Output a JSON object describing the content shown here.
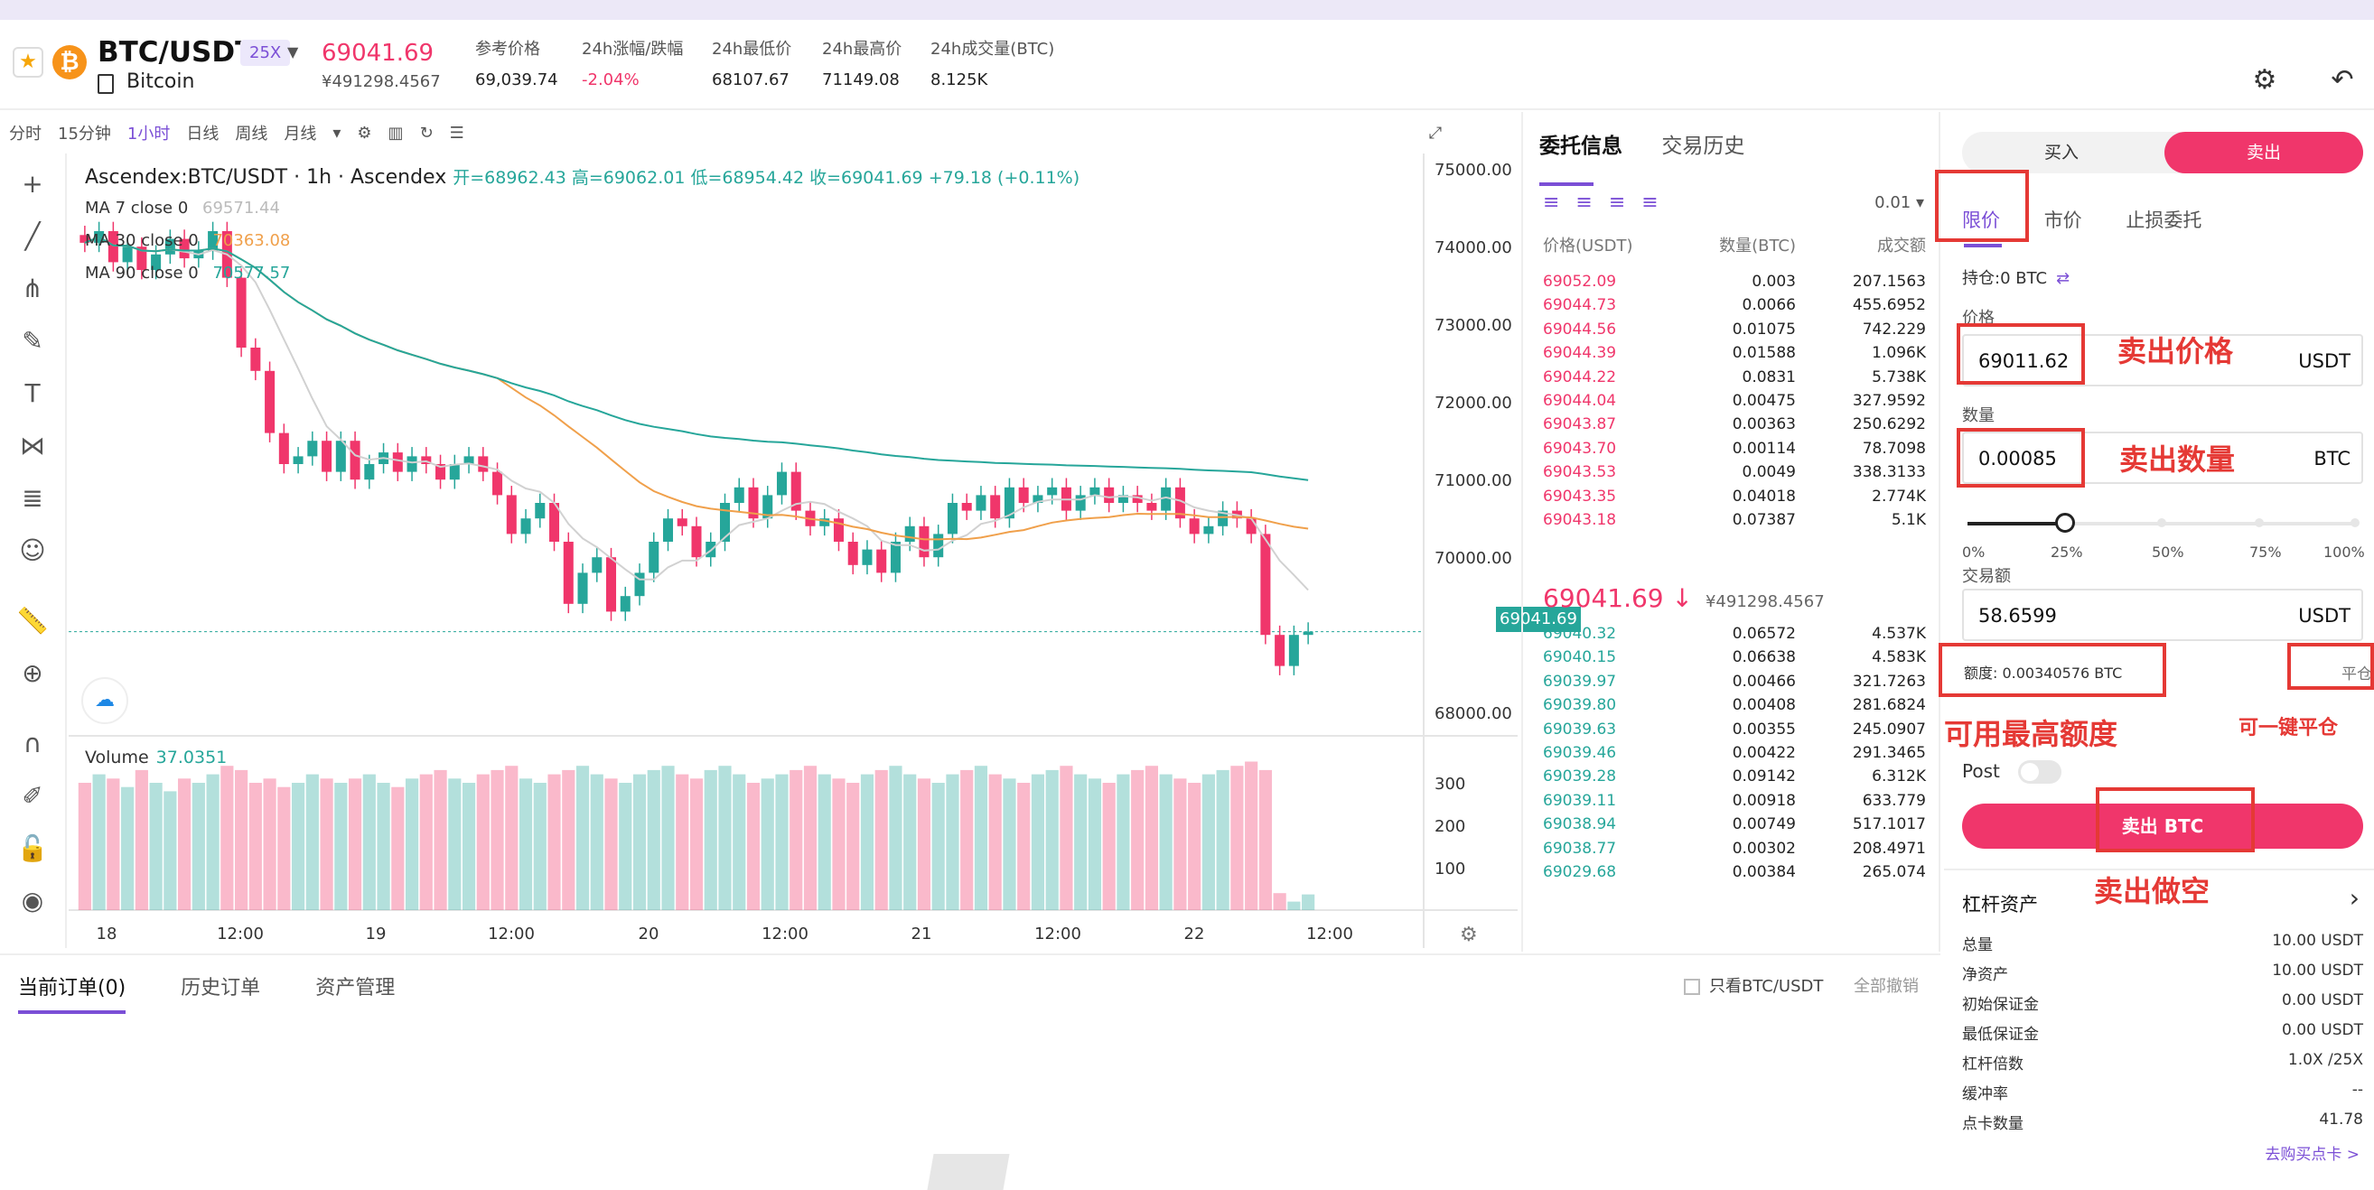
{
  "header": {
    "pair": "BTC/USDT",
    "leverage": "25X",
    "coin_name": "Bitcoin",
    "last_price": "69041.69",
    "last_price_cny": "¥491298.4567",
    "stats": [
      {
        "label": "参考价格",
        "value": "69,039.74"
      },
      {
        "label": "24h涨幅/跌幅",
        "value": "-2.04%"
      },
      {
        "label": "24h最低价",
        "value": "68107.67"
      },
      {
        "label": "24h最高价",
        "value": "71149.08"
      },
      {
        "label": "24h成交量(BTC)",
        "value": "8.125K"
      }
    ],
    "colors": {
      "up": "#26a69a",
      "down": "#f0366b",
      "accent": "#7b4fd6"
    }
  },
  "chart_toolbar": {
    "intervals": [
      "分时",
      "15分钟",
      "1小时",
      "日线",
      "周线",
      "月线"
    ],
    "active_interval": "1小时"
  },
  "chart": {
    "title": "Ascendex:BTC/USDT · 1h · Ascendex",
    "ohlc": "开=68962.43 高=69062.01 低=68954.42 收=69041.69 +79.18 (+0.11%)",
    "ma": [
      {
        "label": "MA 7 close 0",
        "value": "69571.44",
        "color": "#d1d1d1"
      },
      {
        "label": "MA 30 close 0",
        "value": "70363.08",
        "color": "#f0a04b"
      },
      {
        "label": "MA 90 close 0",
        "value": "70577.57",
        "color": "#26a69a"
      }
    ],
    "volume_label": "Volume",
    "volume_value": "37.0351",
    "current_price_tag": "69041.69"
  },
  "chart_data": {
    "type": "candlestick",
    "x_ticks": [
      "18",
      "12:00",
      "19",
      "12:00",
      "20",
      "12:00",
      "21",
      "12:00",
      "22",
      "12:00"
    ],
    "y_ticks": [
      "75000.00",
      "74000.00",
      "73000.00",
      "72000.00",
      "71000.00",
      "70000.00",
      "69041.69",
      "68000.00"
    ],
    "ylim": [
      67700,
      75200
    ],
    "volume_ticks": [
      "300",
      "200",
      "100"
    ],
    "volume_ylim": [
      0,
      400
    ],
    "closes": [
      74050,
      74200,
      73800,
      74000,
      73700,
      73900,
      74100,
      73850,
      73950,
      74200,
      73600,
      72700,
      72400,
      71600,
      71200,
      71300,
      71500,
      71100,
      71500,
      71000,
      71200,
      71350,
      71100,
      71300,
      71200,
      71000,
      71200,
      71300,
      71100,
      70800,
      70300,
      70500,
      70700,
      70200,
      69400,
      69800,
      70000,
      69300,
      69500,
      69800,
      70200,
      70500,
      70400,
      70000,
      70200,
      70700,
      70900,
      70500,
      70800,
      71100,
      70600,
      70400,
      70500,
      70200,
      69900,
      70100,
      69800,
      70200,
      70400,
      70000,
      70300,
      70700,
      70600,
      70800,
      70500,
      70900,
      70700,
      70800,
      70900,
      70600,
      70800,
      70900,
      70700,
      70800,
      70700,
      70600,
      70900,
      70500,
      70300,
      70400,
      70600,
      70500,
      70300,
      69000,
      68600,
      69000,
      69042
    ],
    "volumes": [
      300,
      320,
      310,
      290,
      330,
      300,
      280,
      310,
      300,
      320,
      340,
      330,
      300,
      310,
      290,
      300,
      320,
      310,
      300,
      310,
      320,
      300,
      290,
      310,
      320,
      330,
      310,
      300,
      320,
      330,
      340,
      310,
      300,
      320,
      330,
      340,
      320,
      310,
      300,
      320,
      330,
      340,
      320,
      310,
      330,
      340,
      320,
      300,
      310,
      320,
      330,
      340,
      320,
      310,
      300,
      320,
      330,
      340,
      320,
      310,
      300,
      320,
      330,
      340,
      320,
      310,
      300,
      320,
      330,
      340,
      320,
      310,
      300,
      320,
      330,
      340,
      320,
      310,
      300,
      320,
      330,
      340,
      350,
      330,
      40,
      20,
      37
    ]
  },
  "orderbook": {
    "tabs": [
      "委托信息",
      "交易历史"
    ],
    "step": "0.01 ▾",
    "columns": [
      "价格(USDT)",
      "数量(BTC)",
      "成交额"
    ],
    "asks": [
      [
        "69052.09",
        "0.003",
        "207.1563"
      ],
      [
        "69044.73",
        "0.0066",
        "455.6952"
      ],
      [
        "69044.56",
        "0.01075",
        "742.229"
      ],
      [
        "69044.39",
        "0.01588",
        "1.096K"
      ],
      [
        "69044.22",
        "0.0831",
        "5.738K"
      ],
      [
        "69044.04",
        "0.00475",
        "327.9592"
      ],
      [
        "69043.87",
        "0.00363",
        "250.6292"
      ],
      [
        "69043.70",
        "0.00114",
        "78.7098"
      ],
      [
        "69043.53",
        "0.0049",
        "338.3133"
      ],
      [
        "69043.35",
        "0.04018",
        "2.774K"
      ],
      [
        "69043.18",
        "0.07387",
        "5.1K"
      ]
    ],
    "mid_price": "69041.69 ↓",
    "mid_cny": "¥491298.4567",
    "bids": [
      [
        "69040.32",
        "0.06572",
        "4.537K"
      ],
      [
        "69040.15",
        "0.06638",
        "4.583K"
      ],
      [
        "69039.97",
        "0.00466",
        "321.7263"
      ],
      [
        "69039.80",
        "0.00408",
        "281.6824"
      ],
      [
        "69039.63",
        "0.00355",
        "245.0907"
      ],
      [
        "69039.46",
        "0.00422",
        "291.3465"
      ],
      [
        "69039.28",
        "0.09142",
        "6.312K"
      ],
      [
        "69039.11",
        "0.00918",
        "633.779"
      ],
      [
        "69038.94",
        "0.00749",
        "517.1017"
      ],
      [
        "69038.77",
        "0.00302",
        "208.4971"
      ],
      [
        "69029.68",
        "0.00384",
        "265.074"
      ]
    ]
  },
  "orders": {
    "tabs": [
      "当前订单(0)",
      "历史订单",
      "资产管理"
    ],
    "only_pair": "只看BTC/USDT",
    "cancel_all": "全部撤销"
  },
  "trade": {
    "buy": "买入",
    "sell": "卖出",
    "order_types": [
      "限价",
      "市价",
      "止损委托"
    ],
    "holding": "持仓:0 BTC",
    "price_label": "价格",
    "price_value": "69011.62",
    "qty_label": "数量",
    "qty_value": "0.00085",
    "unit_usdt": "USDT",
    "unit_btc": "BTC",
    "slider_percent": 25,
    "slider_marks": [
      "0%",
      "25%",
      "50%",
      "75%",
      "100%"
    ],
    "amount_label": "交易额",
    "amount_value": "58.6599",
    "quota": "额度: 0.00340576 BTC",
    "close_pos": "平仓",
    "post_label": "Post",
    "sell_button": "卖出 BTC"
  },
  "assets": {
    "title": "杠杆资产",
    "rows": [
      {
        "k": "总量",
        "v": "10.00 USDT"
      },
      {
        "k": "净资产",
        "v": "10.00 USDT"
      },
      {
        "k": "初始保证金",
        "v": "0.00 USDT"
      },
      {
        "k": "最低保证金",
        "v": "0.00 USDT"
      },
      {
        "k": "杠杆倍数",
        "v": "1.0X /25X"
      },
      {
        "k": "缓冲率",
        "v": "--"
      },
      {
        "k": "点卡数量",
        "v": "41.78"
      }
    ],
    "buy_card": "去购买点卡 >"
  },
  "annotations": {
    "sell_price": "卖出价格",
    "sell_qty": "卖出数量",
    "max_quota": "可用最高额度",
    "one_click_close": "可一键平仓",
    "sell_short": "卖出做空"
  }
}
